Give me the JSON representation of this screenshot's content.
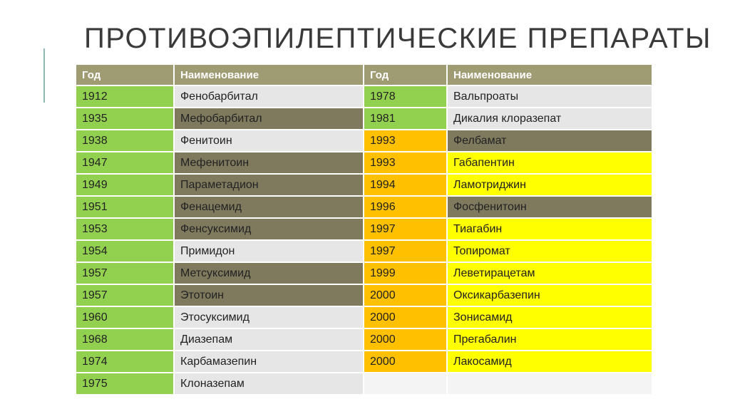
{
  "title": "ПРОТИВОЭПИЛЕПТИЧЕСКИЕ ПРЕПАРАТЫ",
  "colors": {
    "header": "#9f9b72",
    "green": "#92d050",
    "orange": "#ffc000",
    "yellow": "#ffff00",
    "light": "#e6e6e6",
    "dark": "#7f7a5e"
  },
  "headers": [
    "Год",
    "Наименование",
    "Год",
    "Наименование"
  ],
  "rows": [
    {
      "y1": "1912",
      "n1": "Фенобарбитал",
      "y2": "1978",
      "n2": "Вальпроаты"
    },
    {
      "y1": "1935",
      "n1": "Мефобарбитал",
      "y2": "1981",
      "n2": "Дикалия клоразепат"
    },
    {
      "y1": "1938",
      "n1": "Фенитоин",
      "y2": "1993",
      "n2": "Фелбамат"
    },
    {
      "y1": "1947",
      "n1": "Мефенитоин",
      "y2": "1993",
      "n2": "Габапентин"
    },
    {
      "y1": "1949",
      "n1": "Параметадион",
      "y2": "1994",
      "n2": "Ламотриджин"
    },
    {
      "y1": "1951",
      "n1": "Фенацемид",
      "y2": "1996",
      "n2": "Фосфенитоин"
    },
    {
      "y1": "1953",
      "n1": "Фенсуксимид",
      "y2": "1997",
      "n2": "Тиагабин"
    },
    {
      "y1": "1954",
      "n1": "Примидон",
      "y2": "1997",
      "n2": "Топиромат"
    },
    {
      "y1": "1957",
      "n1": "Метсуксимид",
      "y2": "1999",
      "n2": "Леветирацетам"
    },
    {
      "y1": "1957",
      "n1": "Этотоин",
      "y2": "2000",
      "n2": "Оксикарбазепин"
    },
    {
      "y1": "1960",
      "n1": "Этосуксимид",
      "y2": "2000",
      "n2": "Зонисамид"
    },
    {
      "y1": "1968",
      "n1": "Диазепам",
      "y2": "2000",
      "n2": "Прегабалин"
    },
    {
      "y1": "1974",
      "n1": "Карбамазепин",
      "y2": "2000",
      "n2": "Лакосамид"
    },
    {
      "y1": "1975",
      "n1": "Клоназепам",
      "y2": "",
      "n2": ""
    }
  ]
}
